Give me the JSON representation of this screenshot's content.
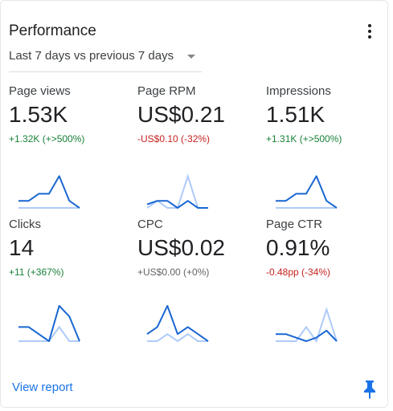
{
  "card": {
    "title": "Performance",
    "date_range": "Last 7 days vs previous 7 days",
    "view_report": "View report"
  },
  "colors": {
    "accent": "#1a73e8",
    "current": "#1967d2",
    "previous": "#aecbfa",
    "positive": "#188038",
    "negative": "#c5221f",
    "neutral": "#5f6368"
  },
  "icons": {
    "menu": "more-vert-icon",
    "date_dropdown": "caret-down-icon",
    "pin": "pin-icon"
  },
  "metrics": [
    {
      "label": "Page views",
      "value": "1.53K",
      "delta": "+1.32K (+>500%)",
      "trend": "up",
      "current": [
        2,
        2,
        4,
        4,
        9,
        2,
        0
      ],
      "previous": [
        0,
        0,
        0,
        0,
        0,
        0,
        0
      ]
    },
    {
      "label": "Page RPM",
      "value": "US$0.21",
      "delta": "-US$0.10 (-32%)",
      "trend": "down",
      "current": [
        1,
        2,
        2,
        0,
        2,
        0,
        0
      ],
      "previous": [
        0,
        2,
        0,
        0,
        9,
        0,
        0
      ]
    },
    {
      "label": "Impressions",
      "value": "1.51K",
      "delta": "+1.31K (+>500%)",
      "trend": "up",
      "current": [
        2,
        2,
        4,
        4,
        9,
        2,
        0
      ],
      "previous": [
        0,
        0,
        0,
        0,
        0,
        0,
        0
      ]
    },
    {
      "label": "Clicks",
      "value": "14",
      "delta": "+11 (+367%)",
      "trend": "up",
      "current": [
        4,
        4,
        2,
        0,
        10,
        7,
        0
      ],
      "previous": [
        0,
        0,
        0,
        0,
        4,
        0,
        0
      ]
    },
    {
      "label": "CPC",
      "value": "US$0.02",
      "delta": "+US$0.00 (+0%)",
      "trend": "neutral",
      "current": [
        2,
        4,
        10,
        2,
        4,
        2,
        0
      ],
      "previous": [
        0,
        0,
        2,
        0,
        2,
        0,
        0
      ]
    },
    {
      "label": "Page CTR",
      "value": "0.91%",
      "delta": "-0.48pp (-34%)",
      "trend": "down",
      "current": [
        2,
        2,
        1,
        0,
        1,
        3,
        0
      ],
      "previous": [
        0,
        0,
        0,
        4,
        0,
        9,
        0
      ]
    }
  ]
}
